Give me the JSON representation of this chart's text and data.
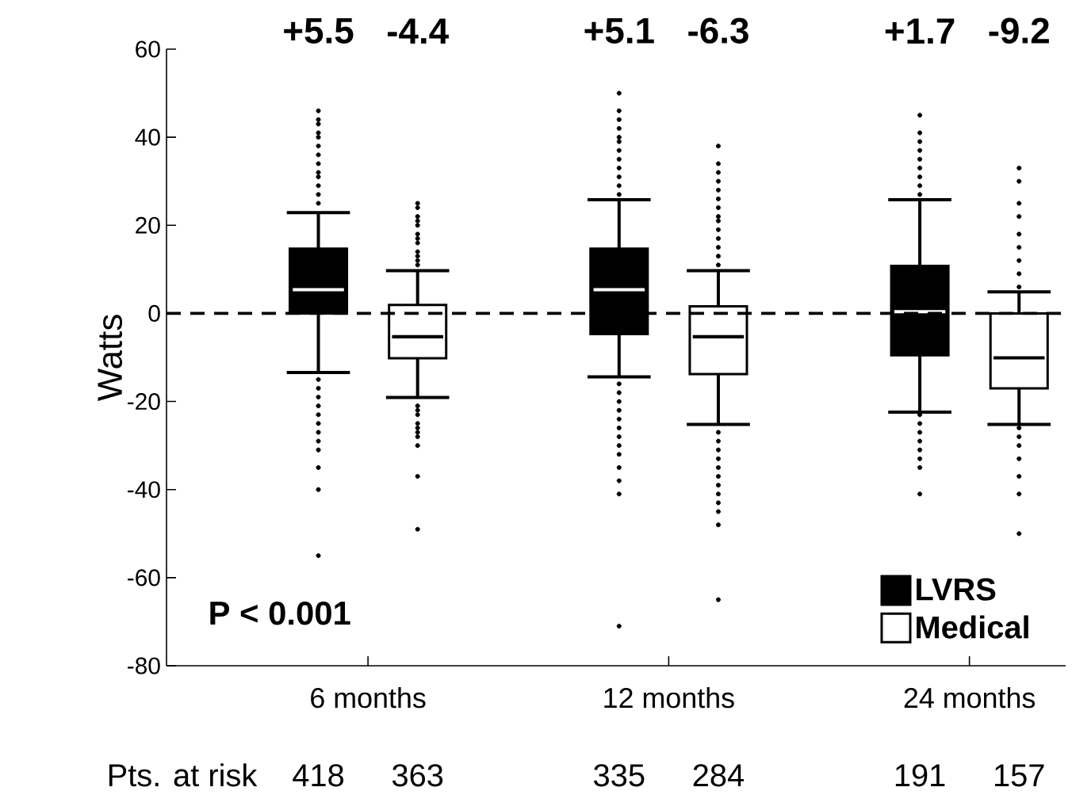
{
  "chart_data": {
    "type": "box",
    "ylabel": "Watts",
    "categories": [
      "6 months",
      "12 months",
      "24 months"
    ],
    "ylim": [
      -80,
      60
    ],
    "yticks": [
      -80,
      -60,
      -40,
      -20,
      0,
      20,
      40,
      60
    ],
    "legend": "bottom right",
    "marker": "circle",
    "ref_lines": [
      {
        "axis": "y",
        "value": 0,
        "line_style": "dashed"
      }
    ],
    "annotations": [
      "+5.5",
      "-4.4",
      "+5.1",
      "-6.3",
      "+1.7",
      "-9.2",
      "P < 0.001",
      "Pts. at risk",
      "418",
      "363",
      "335",
      "284",
      "191",
      "157"
    ],
    "series": [
      {
        "name": "LVRS",
        "color": "#000000",
        "boxes": [
          {
            "low": -13.4,
            "q1": 0,
            "median": 5.4,
            "q3": 14.7,
            "high": 22.9,
            "outliers": [
              25,
              27,
              29,
              31,
              32,
              34,
              36,
              38,
              40,
              41,
              43,
              44,
              46,
              -15,
              -17,
              -19,
              -21,
              -23,
              -25,
              -27,
              -29,
              -31,
              -35,
              -40,
              -55
            ]
          },
          {
            "low": -14.4,
            "q1": -4.7,
            "median": 5.4,
            "q3": 14.7,
            "high": 25.8,
            "outliers": [
              27,
              29,
              31,
              33,
              35,
              37,
              39,
              40,
              42,
              44,
              46,
              50,
              -16,
              -18,
              -20,
              -22,
              -24,
              -26,
              -28,
              -30,
              -32,
              -35,
              -38,
              -41,
              -71
            ]
          },
          {
            "low": -22.4,
            "q1": -9.5,
            "median": 0.4,
            "q3": 10.8,
            "high": 25.8,
            "outliers": [
              27,
              29,
              31,
              33,
              35,
              37,
              39,
              41,
              45,
              -23,
              -25,
              -27,
              -29,
              -31,
              -33,
              -35,
              -41
            ]
          }
        ]
      },
      {
        "name": "Medical",
        "color": "#ffffff",
        "boxes": [
          {
            "low": -19.1,
            "q1": -10.2,
            "median": -5.3,
            "q3": 1.9,
            "high": 9.7,
            "outliers": [
              11,
              12,
              13,
              14,
              16,
              17,
              18,
              20,
              21,
              22,
              24,
              25,
              -21,
              -22,
              -23,
              -25,
              -26,
              -27,
              -28,
              -30,
              -37,
              -49
            ]
          },
          {
            "low": -25.2,
            "q1": -13.8,
            "median": -5.3,
            "q3": 1.6,
            "high": 9.7,
            "outliers": [
              11,
              13,
              15,
              17,
              19,
              21,
              22,
              24,
              26,
              28,
              30,
              32,
              34,
              38,
              -27,
              -29,
              -31,
              -33,
              -35,
              -37,
              -39,
              -41,
              -43,
              -45,
              -48,
              -65
            ]
          },
          {
            "low": -25.2,
            "q1": -17,
            "median": -10.1,
            "q3": 0,
            "high": 4.9,
            "outliers": [
              6,
              9,
              12,
              15,
              18,
              22,
              25,
              30,
              33,
              -26,
              -28,
              -30,
              -33,
              -37,
              -41,
              -50
            ]
          }
        ]
      }
    ]
  }
}
